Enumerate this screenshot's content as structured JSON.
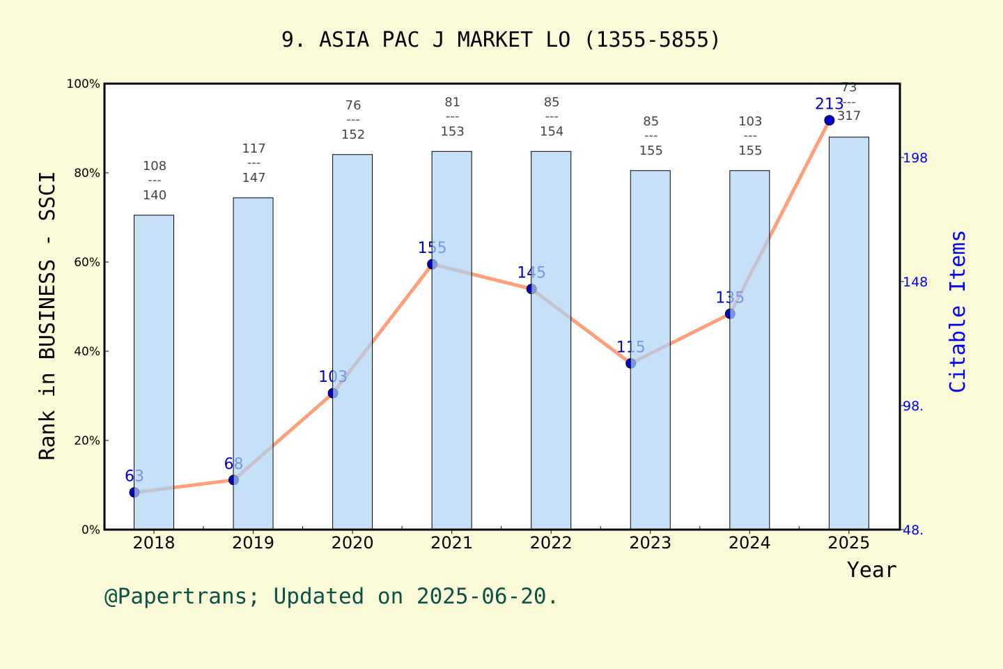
{
  "chart_data": {
    "type": "bar+line",
    "title": "9. ASIA PAC J MARKET LO (1355-5855)",
    "xlabel": "Year",
    "ylabel": "Rank in BUSINESS - SSCI",
    "y2label": "Citable Items",
    "categories": [
      "2018",
      "2019",
      "2020",
      "2021",
      "2022",
      "2023",
      "2024",
      "2025"
    ],
    "ylim": [
      0,
      100
    ],
    "yticks": [
      "0%",
      "20%",
      "40%",
      "60%",
      "80%",
      "100%"
    ],
    "y2lim": [
      48,
      228
    ],
    "y2ticks": [
      "48.",
      "98.",
      "148",
      "198"
    ],
    "bar_values_percent": [
      70.5,
      74.4,
      84.1,
      84.8,
      84.8,
      80.5,
      80.5,
      88.0
    ],
    "rank_labels": [
      {
        "rank": "108",
        "total": "140"
      },
      {
        "rank": "117",
        "total": "147"
      },
      {
        "rank": "76",
        "total": "152"
      },
      {
        "rank": "81",
        "total": "153"
      },
      {
        "rank": "85",
        "total": "154"
      },
      {
        "rank": "85",
        "total": "155"
      },
      {
        "rank": "103",
        "total": "155"
      },
      {
        "rank": "73",
        "total": "317"
      }
    ],
    "separator": "---",
    "citable_items": [
      63,
      68,
      103,
      155,
      145,
      115,
      135,
      213
    ],
    "colors": {
      "bar": "#c5e0f7",
      "line": "#ff9f7a",
      "point": "#0000cc",
      "right_axis": "#0000ff",
      "footer": "#0b5345"
    },
    "grid": false
  },
  "footer": "@Papertrans; Updated on 2025-06-20."
}
